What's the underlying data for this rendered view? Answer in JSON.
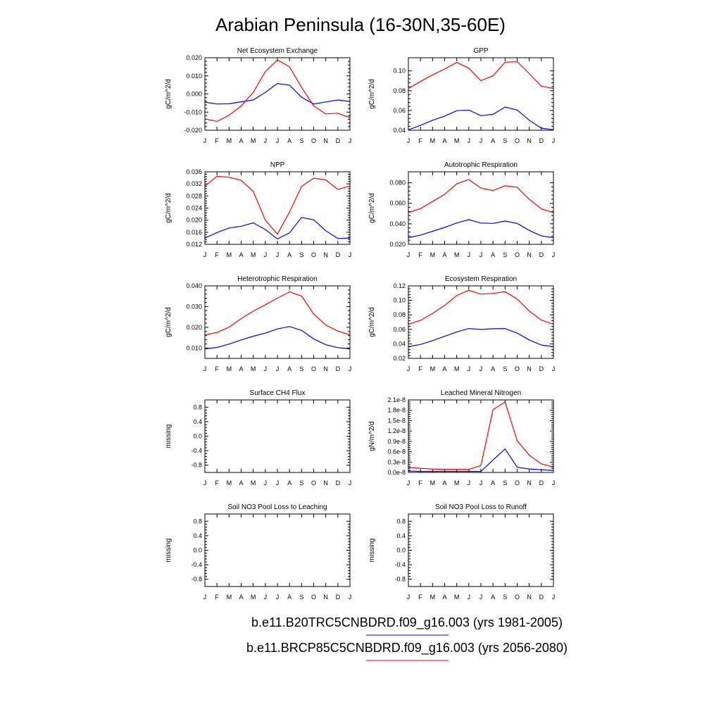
{
  "title": "Arabian Peninsula (16-30N,35-60E)",
  "months": [
    "J",
    "F",
    "M",
    "A",
    "M",
    "J",
    "J",
    "A",
    "S",
    "O",
    "N",
    "D",
    "J"
  ],
  "legend": [
    {
      "label": "b.e11.B20TRC5CNBDRD.f09_g16.003 (yrs 1981-2005)",
      "color": "#0000ff"
    },
    {
      "label": "b.e11.BRCP85C5CNBDRD.f09_g16.003 (yrs 2056-2080)",
      "color": "#ff0000"
    }
  ],
  "colors": {
    "series1": "#0000ff",
    "series2": "#ff0000"
  },
  "chart_data": [
    {
      "type": "line",
      "title": "Net Ecosystem Exchange",
      "ylabel": "gC/m^2/d",
      "ylim": [
        -0.02,
        0.02
      ],
      "yticks": [
        -0.02,
        -0.01,
        0.0,
        0.01,
        0.02
      ],
      "ytick_labels": [
        "-0.020",
        "-0.010",
        "0.000",
        "0.010",
        "0.020"
      ],
      "x": [
        "J",
        "F",
        "M",
        "A",
        "M",
        "J",
        "J",
        "A",
        "S",
        "O",
        "N",
        "D",
        "J"
      ],
      "series": [
        {
          "values": [
            -0.0045,
            -0.0055,
            -0.0054,
            -0.0043,
            -0.0033,
            0.0009,
            0.0058,
            0.0049,
            -0.0018,
            -0.0055,
            -0.0044,
            -0.0033,
            -0.0041
          ]
        },
        {
          "values": [
            -0.0137,
            -0.0151,
            -0.0117,
            -0.0066,
            0.0009,
            0.0124,
            0.0188,
            0.015,
            0.0037,
            -0.0066,
            -0.011,
            -0.0106,
            -0.0131
          ]
        }
      ]
    },
    {
      "type": "line",
      "title": "GPP",
      "ylabel": "gC/m^2/d",
      "ylim": [
        0.04,
        0.1133
      ],
      "yticks": [
        0.04,
        0.06,
        0.08,
        0.1
      ],
      "ytick_labels": [
        "0.04",
        "0.06",
        "0.08",
        "0.10"
      ],
      "x": [
        "J",
        "F",
        "M",
        "A",
        "M",
        "J",
        "J",
        "A",
        "S",
        "O",
        "N",
        "D",
        "J"
      ],
      "series": [
        {
          "values": [
            0.0405,
            0.0449,
            0.0501,
            0.0543,
            0.0598,
            0.0604,
            0.0547,
            0.0561,
            0.0635,
            0.0605,
            0.0501,
            0.0421,
            0.0405
          ]
        },
        {
          "values": [
            0.0822,
            0.0893,
            0.096,
            0.1019,
            0.1085,
            0.1028,
            0.0902,
            0.0951,
            0.1088,
            0.1093,
            0.0973,
            0.0846,
            0.0822
          ]
        }
      ]
    },
    {
      "type": "line",
      "title": "NPP",
      "ylabel": "gC/m^2/d",
      "ylim": [
        0.012,
        0.036
      ],
      "yticks": [
        0.012,
        0.016,
        0.02,
        0.024,
        0.028,
        0.032,
        0.036
      ],
      "ytick_labels": [
        "0.012",
        "0.016",
        "0.020",
        "0.024",
        "0.028",
        "0.032",
        "0.036"
      ],
      "x": [
        "J",
        "F",
        "M",
        "A",
        "M",
        "J",
        "J",
        "A",
        "S",
        "O",
        "N",
        "D",
        "J"
      ],
      "series": [
        {
          "values": [
            0.0141,
            0.0159,
            0.0174,
            0.018,
            0.0191,
            0.0169,
            0.0138,
            0.0158,
            0.0209,
            0.0201,
            0.0165,
            0.0139,
            0.0141
          ]
        },
        {
          "values": [
            0.0313,
            0.0345,
            0.0342,
            0.0332,
            0.0295,
            0.02,
            0.0154,
            0.0227,
            0.0312,
            0.0339,
            0.0333,
            0.0302,
            0.0313
          ]
        }
      ]
    },
    {
      "type": "line",
      "title": "Autotrophic Respiration",
      "ylabel": "gC/m^2/d",
      "ylim": [
        0.02,
        0.0907
      ],
      "yticks": [
        0.02,
        0.04,
        0.06,
        0.08
      ],
      "ytick_labels": [
        "0.020",
        "0.040",
        "0.060",
        "0.080"
      ],
      "x": [
        "J",
        "F",
        "M",
        "A",
        "M",
        "J",
        "J",
        "A",
        "S",
        "O",
        "N",
        "D",
        "J"
      ],
      "series": [
        {
          "values": [
            0.0265,
            0.029,
            0.0327,
            0.0365,
            0.0408,
            0.0441,
            0.0407,
            0.0404,
            0.0427,
            0.0404,
            0.0336,
            0.0282,
            0.0265
          ]
        },
        {
          "values": [
            0.0509,
            0.0549,
            0.0617,
            0.0688,
            0.079,
            0.0832,
            0.0748,
            0.0725,
            0.0771,
            0.0757,
            0.0639,
            0.0546,
            0.0509
          ]
        }
      ]
    },
    {
      "type": "line",
      "title": "Heterotrophic Respiration",
      "ylabel": "gC/m^2/d",
      "ylim": [
        0.005,
        0.04
      ],
      "yticks": [
        0.01,
        0.02,
        0.03,
        0.04
      ],
      "ytick_labels": [
        "0.010",
        "0.020",
        "0.030",
        "0.040"
      ],
      "x": [
        "J",
        "F",
        "M",
        "A",
        "M",
        "J",
        "J",
        "A",
        "S",
        "O",
        "N",
        "D",
        "J"
      ],
      "series": [
        {
          "values": [
            0.0096,
            0.0103,
            0.0119,
            0.0139,
            0.0157,
            0.0172,
            0.0192,
            0.0204,
            0.0185,
            0.0144,
            0.0116,
            0.0102,
            0.0096
          ]
        },
        {
          "values": [
            0.0164,
            0.0175,
            0.0201,
            0.0242,
            0.0278,
            0.0309,
            0.0341,
            0.0371,
            0.0351,
            0.0264,
            0.0211,
            0.0182,
            0.0164
          ]
        }
      ]
    },
    {
      "type": "line",
      "title": "Ecosystem Respiration",
      "ylabel": "gC/m^2/d",
      "ylim": [
        0.02,
        0.12
      ],
      "yticks": [
        0.02,
        0.04,
        0.06,
        0.08,
        0.1,
        0.12
      ],
      "ytick_labels": [
        "0.02",
        "0.04",
        "0.06",
        "0.08",
        "0.10",
        "0.12"
      ],
      "x": [
        "J",
        "F",
        "M",
        "A",
        "M",
        "J",
        "J",
        "A",
        "S",
        "O",
        "N",
        "D",
        "J"
      ],
      "series": [
        {
          "values": [
            0.0361,
            0.0392,
            0.0445,
            0.0505,
            0.0565,
            0.0612,
            0.0599,
            0.0609,
            0.0612,
            0.0549,
            0.0454,
            0.0384,
            0.0361
          ]
        },
        {
          "values": [
            0.0672,
            0.0724,
            0.082,
            0.093,
            0.1068,
            0.1139,
            0.1085,
            0.1096,
            0.1119,
            0.1019,
            0.0852,
            0.0728,
            0.0672
          ]
        }
      ]
    },
    {
      "type": "line",
      "title": "Surface CH4 Flux",
      "ylabel": "missing",
      "ylim": [
        -1.0,
        1.0
      ],
      "yticks": [
        -0.8,
        -0.4,
        0.0,
        0.4,
        0.8
      ],
      "ytick_labels": [
        "-0.8",
        "-0.4",
        "0.0",
        "0.4",
        "0.8"
      ],
      "x": [
        "J",
        "F",
        "M",
        "A",
        "M",
        "J",
        "J",
        "A",
        "S",
        "O",
        "N",
        "D",
        "J"
      ],
      "series": []
    },
    {
      "type": "line",
      "title": "Leached Mineral Nitrogen",
      "ylabel": "gN/m^2/d",
      "ylim": [
        0.0,
        2.1e-08
      ],
      "yticks": [
        0.0,
        3e-09,
        6e-09,
        9e-09,
        1.2e-08,
        1.5e-08,
        1.8e-08,
        2.1e-08
      ],
      "ytick_labels": [
        "0.0e-8",
        "0.3e-8",
        "0.6e-8",
        "0.9e-8",
        "1.2e-8",
        "1.5e-8",
        "1.8e-8",
        "2.1e-8"
      ],
      "x": [
        "J",
        "F",
        "M",
        "A",
        "M",
        "J",
        "J",
        "A",
        "S",
        "O",
        "N",
        "D",
        "J"
      ],
      "series": [
        {
          "values": [
            4e-10,
            3e-10,
            3e-10,
            3e-10,
            3e-10,
            3e-10,
            3e-10,
            3.6e-09,
            6.8e-09,
            1.5e-09,
            1e-09,
            8e-10,
            6e-10
          ]
        },
        {
          "values": [
            1.5e-09,
            1.2e-09,
            1e-09,
            9e-10,
            9e-10,
            9e-10,
            2e-09,
            1.82e-08,
            2.04e-08,
            9.2e-09,
            5e-09,
            2.5e-09,
            1.5e-09
          ]
        }
      ]
    },
    {
      "type": "line",
      "title": "Soil NO3 Pool Loss to Leaching",
      "ylabel": "missing",
      "ylim": [
        -1.0,
        1.0
      ],
      "yticks": [
        -0.8,
        -0.4,
        0.0,
        0.4,
        0.8
      ],
      "ytick_labels": [
        "-0.8",
        "-0.4",
        "0.0",
        "0.4",
        "0.8"
      ],
      "x": [
        "J",
        "F",
        "M",
        "A",
        "M",
        "J",
        "J",
        "A",
        "S",
        "O",
        "N",
        "D",
        "J"
      ],
      "series": []
    },
    {
      "type": "line",
      "title": "Soil NO3 Pool Loss to Runoff",
      "ylabel": "missing",
      "ylim": [
        -1.0,
        1.0
      ],
      "yticks": [
        -0.8,
        -0.4,
        0.0,
        0.4,
        0.8
      ],
      "ytick_labels": [
        "-0.8",
        "-0.4",
        "0.0",
        "0.4",
        "0.8"
      ],
      "x": [
        "J",
        "F",
        "M",
        "A",
        "M",
        "J",
        "J",
        "A",
        "S",
        "O",
        "N",
        "D",
        "J"
      ],
      "series": []
    }
  ]
}
